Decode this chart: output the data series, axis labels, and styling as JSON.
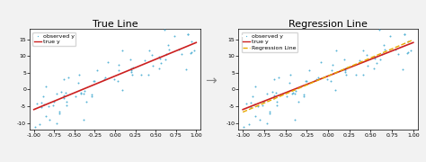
{
  "seed": 42,
  "n_points": 80,
  "x_range": [
    -1.0,
    1.0
  ],
  "true_slope": 10,
  "true_intercept": 4,
  "noise_std": 3.5,
  "title_left": "True Line",
  "title_right": "Regression Line",
  "legend_observed": "observed y",
  "legend_true": "true y",
  "legend_regression": "Regression Line",
  "scatter_color": "#5ab4d6",
  "true_line_color": "#cc2020",
  "regression_line_color": "#e8a800",
  "scatter_marker": ".",
  "scatter_size": 8,
  "xlim": [
    -1.05,
    1.05
  ],
  "ylim": [
    -12,
    18
  ],
  "yticks": [
    -10,
    -5,
    0,
    5,
    10,
    15
  ],
  "xticks": [
    -1.0,
    -0.75,
    -0.5,
    -0.25,
    0.0,
    0.25,
    0.5,
    0.75,
    1.0
  ],
  "arrow_color": "#888888",
  "bg_color": "#f2f2f2",
  "title_fontsize": 8,
  "tick_fontsize": 4.5,
  "legend_fontsize": 4.5
}
